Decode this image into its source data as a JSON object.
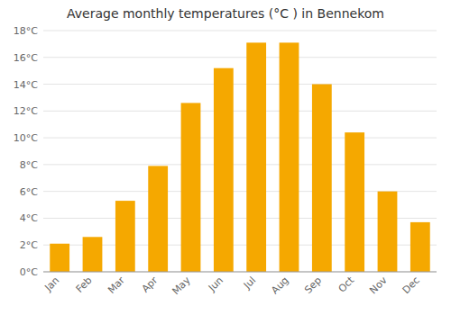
{
  "chart_data": {
    "type": "bar",
    "title": "Average monthly temperatures (°C ) in Bennekom",
    "categories": [
      "Jan",
      "Feb",
      "Mar",
      "Apr",
      "May",
      "Jun",
      "Jul",
      "Aug",
      "Sep",
      "Oct",
      "Nov",
      "Dec"
    ],
    "values": [
      2.1,
      2.6,
      5.3,
      7.9,
      12.6,
      15.2,
      17.1,
      17.1,
      14.0,
      10.4,
      6.0,
      3.7
    ],
    "color": "#F5A800",
    "ylim": [
      0,
      18
    ],
    "yticks": [
      {
        "value": 0,
        "label": "0°C"
      },
      {
        "value": 2,
        "label": "2°C"
      },
      {
        "value": 4,
        "label": "4°C"
      },
      {
        "value": 6,
        "label": "6°C"
      },
      {
        "value": 8,
        "label": "8°C"
      },
      {
        "value": 10,
        "label": "10°C"
      },
      {
        "value": 12,
        "label": "12°C"
      },
      {
        "value": 14,
        "label": "14°C"
      },
      {
        "value": 16,
        "label": "16°C"
      },
      {
        "value": 18,
        "label": "18°C"
      }
    ],
    "grid": true
  }
}
